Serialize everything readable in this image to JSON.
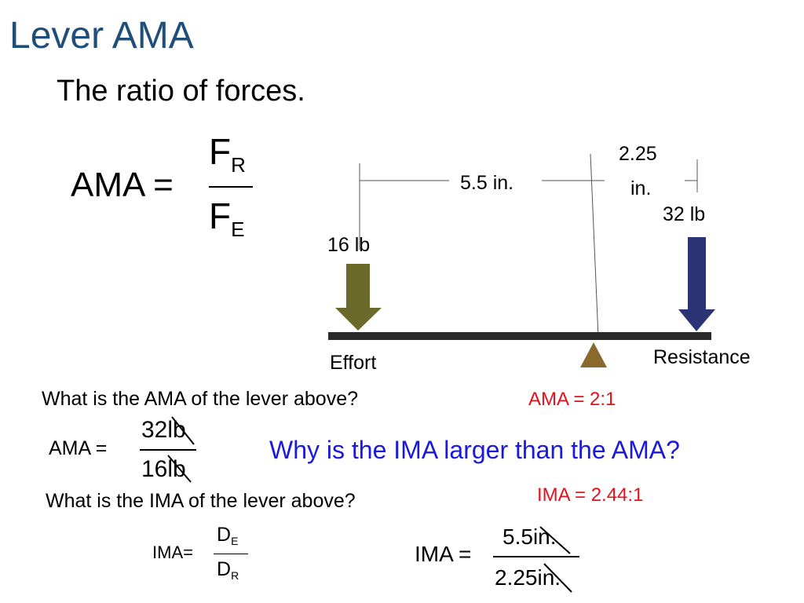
{
  "slide": {
    "title": "Lever AMA",
    "subtitle": "The ratio of forces."
  },
  "formula_ama": {
    "lhs": "AMA =",
    "num_main": "F",
    "num_sub": "R",
    "den_main": "F",
    "den_sub": "E"
  },
  "diagram": {
    "effort_distance": "5.5 in.",
    "resistance_distance_line1": "2.25",
    "resistance_distance_line2": "in.",
    "effort_force": "16 lb",
    "resistance_force": "32 lb",
    "effort_label": "Effort",
    "resistance_label": "Resistance",
    "colors": {
      "effort_arrow": "#6b6a2a",
      "resistance_arrow": "#2b3575",
      "fulcrum": "#8a6a2c",
      "lever_bar": "#2a2a2a"
    }
  },
  "ama_question": {
    "question": "What is the AMA of the lever above?",
    "answer": "AMA = 2:1",
    "lhs": "AMA =",
    "numerator_value": "32",
    "numerator_unit": "lb",
    "denominator_value": "16",
    "denominator_unit": "lb"
  },
  "why_question": "Why is the IMA larger than the AMA?",
  "ima_question": {
    "question": "What is the IMA of the lever above?",
    "answer": "IMA = 2.44:1",
    "formula_lhs": "IMA=",
    "formula_num_main": "D",
    "formula_num_sub": "E",
    "formula_den_main": "D",
    "formula_den_sub": "R",
    "calc_lhs": "IMA =",
    "numerator_value": "5.5",
    "numerator_unit": "in.",
    "denominator_value": "2.25",
    "denominator_unit": "in."
  },
  "colors": {
    "title": "#1f4e79",
    "answer_red": "#e8101a",
    "question_blue": "#1a1adc"
  }
}
